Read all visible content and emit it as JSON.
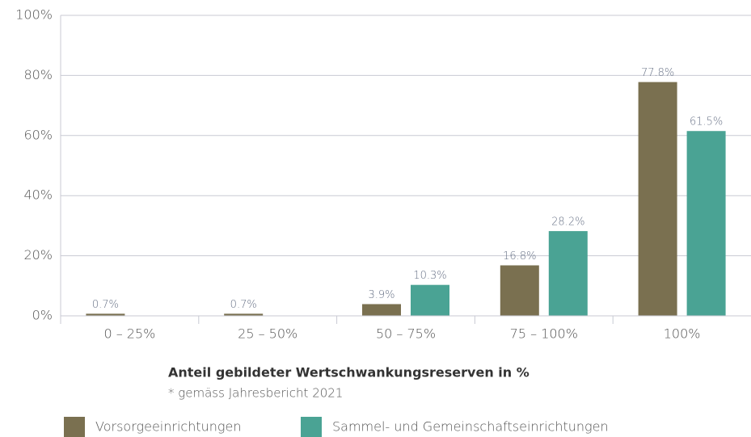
{
  "chart_data": {
    "type": "bar",
    "title": "Anteil gebildeter Wertschwankungsreserven in %",
    "subtitle": "* gemäss Jahresbericht 2021",
    "categories": [
      "0 – 25%",
      "25 – 50%",
      "50 – 75%",
      "75 – 100%",
      "100%"
    ],
    "series": [
      {
        "name": "Vorsorgeeinrichtungen",
        "color": "#7a7050",
        "values": [
          0.7,
          0.7,
          3.9,
          16.8,
          77.8
        ],
        "value_labels": [
          "0.7%",
          "0.7%",
          "3.9%",
          "16.8%",
          "77.8%"
        ]
      },
      {
        "name": "Sammel- und Gemeinschaftseinrichtungen",
        "color": "#4aa394",
        "values": [
          0,
          0,
          10.3,
          28.2,
          61.5
        ],
        "value_labels": [
          null,
          null,
          "10.3%",
          "28.2%",
          "61.5%"
        ]
      }
    ],
    "ylim": [
      0,
      100
    ],
    "yticks": [
      {
        "value": 0,
        "label": "0%"
      },
      {
        "value": 20,
        "label": "20%"
      },
      {
        "value": 40,
        "label": "40%"
      },
      {
        "value": 60,
        "label": "60%"
      },
      {
        "value": 80,
        "label": "80%"
      },
      {
        "value": 100,
        "label": "100%"
      }
    ],
    "grid": true
  }
}
